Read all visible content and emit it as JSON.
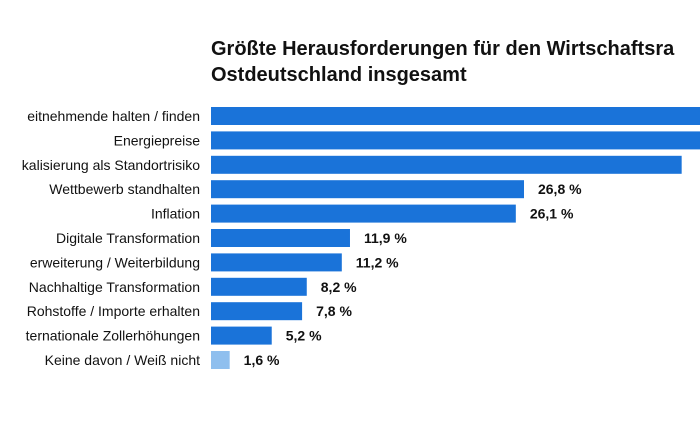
{
  "chart_data": {
    "type": "bar",
    "orientation": "horizontal",
    "title_lines": [
      "Größte Herausforderungen für den Wirtschaftsra",
      "Ostdeutschland insgesamt"
    ],
    "categories": [
      "eitnehmende halten / finden",
      "Energiepreise",
      "kalisierung als Standortrisiko",
      "Wettbewerb standhalten",
      "Inflation",
      "Digitale Transformation",
      "erweiterung / Weiterbildung",
      "Nachhaltige Transformation",
      "Rohstoffe / Importe erhalten",
      "ternationale Zollerhöhungen",
      "Keine davon / Weiß nicht"
    ],
    "values": [
      null,
      null,
      null,
      26.8,
      26.1,
      11.9,
      11.2,
      8.2,
      7.8,
      5.2,
      1.6
    ],
    "value_labels": [
      "",
      "",
      "",
      "26,8 %",
      "26,1 %",
      "11,9 %",
      "11,2 %",
      "8,2 %",
      "7,8 %",
      "5,2 %",
      "1,6 %"
    ],
    "bar_extends_past_frame": [
      true,
      true,
      false,
      false,
      false,
      false,
      false,
      false,
      false,
      false,
      false
    ],
    "truncated_end_values": [
      null,
      null,
      40.3,
      null,
      null,
      null,
      null,
      null,
      null,
      null,
      null
    ],
    "bar_color": "#1a73d9",
    "highlight_color": "#8fbfee",
    "highlight_index": 10,
    "text_color": "#111111",
    "xlim": [
      0,
      40.5
    ]
  }
}
